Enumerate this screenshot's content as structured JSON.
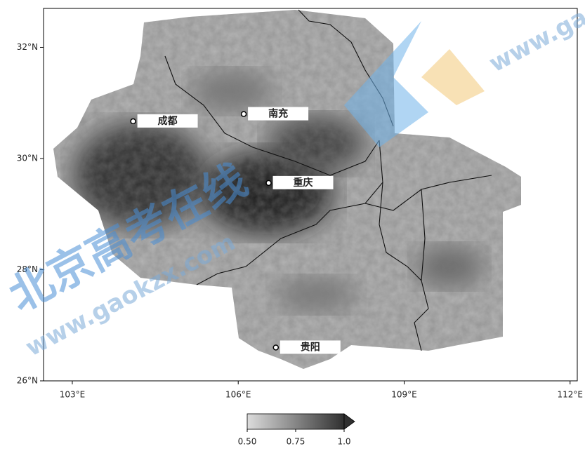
{
  "map": {
    "lonlim": [
      102.48,
      112.13
    ],
    "latlim": [
      26,
      32.7
    ],
    "lonticks": [
      {
        "value": 103,
        "label": "103°E"
      },
      {
        "value": 106,
        "label": "106°E"
      },
      {
        "value": 109,
        "label": "109°E"
      },
      {
        "value": 112,
        "label": "112°E"
      }
    ],
    "latticks": [
      {
        "value": 26,
        "label": "26°N"
      },
      {
        "value": 28,
        "label": "28°N"
      },
      {
        "value": 30,
        "label": "30°N"
      },
      {
        "value": 32,
        "label": "32°N"
      }
    ],
    "cities": [
      {
        "name": "成都",
        "lon": 104.1,
        "lat": 30.67
      },
      {
        "name": "南充",
        "lon": 106.1,
        "lat": 30.8
      },
      {
        "name": "重庆",
        "lon": 106.55,
        "lat": 29.56
      },
      {
        "name": "贵阳",
        "lon": 106.68,
        "lat": 26.6
      }
    ],
    "colorbar": {
      "range": [
        0.5,
        1.0
      ],
      "extend": "max",
      "ticks": [
        {
          "value": 0.5,
          "label": "0.50"
        },
        {
          "value": 0.75,
          "label": "0.75"
        },
        {
          "value": 1.0,
          "label": "1.0"
        }
      ]
    }
  },
  "watermark": {
    "title": "北京高考在线",
    "url": "www.gaokzx.com"
  }
}
